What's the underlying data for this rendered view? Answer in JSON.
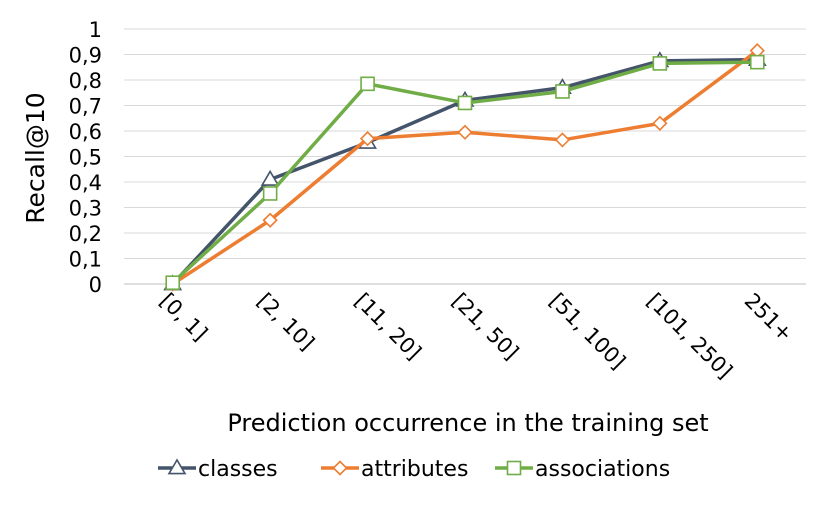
{
  "chart_data": {
    "type": "line",
    "categories": [
      "[0, 1]",
      "[2, 10]",
      "[11, 20]",
      "[21, 50]",
      "[51, 100]",
      "[101, 250]",
      "251+"
    ],
    "series": [
      {
        "name": "classes",
        "values": [
          0.0,
          0.41,
          0.555,
          0.72,
          0.77,
          0.875,
          0.88
        ],
        "color": "#44546a",
        "marker": "triangle"
      },
      {
        "name": "attributes",
        "values": [
          0.0,
          0.25,
          0.57,
          0.595,
          0.565,
          0.63,
          0.915
        ],
        "color": "#ed7d31",
        "marker": "diamond"
      },
      {
        "name": "associations",
        "values": [
          0.005,
          0.355,
          0.785,
          0.71,
          0.755,
          0.865,
          0.87
        ],
        "color": "#70ad47",
        "marker": "square"
      }
    ],
    "ylim": [
      0,
      1
    ],
    "yticks": [
      "0",
      "0,1",
      "0,2",
      "0,3",
      "0,4",
      "0,5",
      "0,6",
      "0,7",
      "0,8",
      "0,9",
      "1"
    ],
    "xlabel": "Prediction occurrence in the training set",
    "ylabel": "Recall@10",
    "grid": true,
    "legend": "bottom"
  }
}
